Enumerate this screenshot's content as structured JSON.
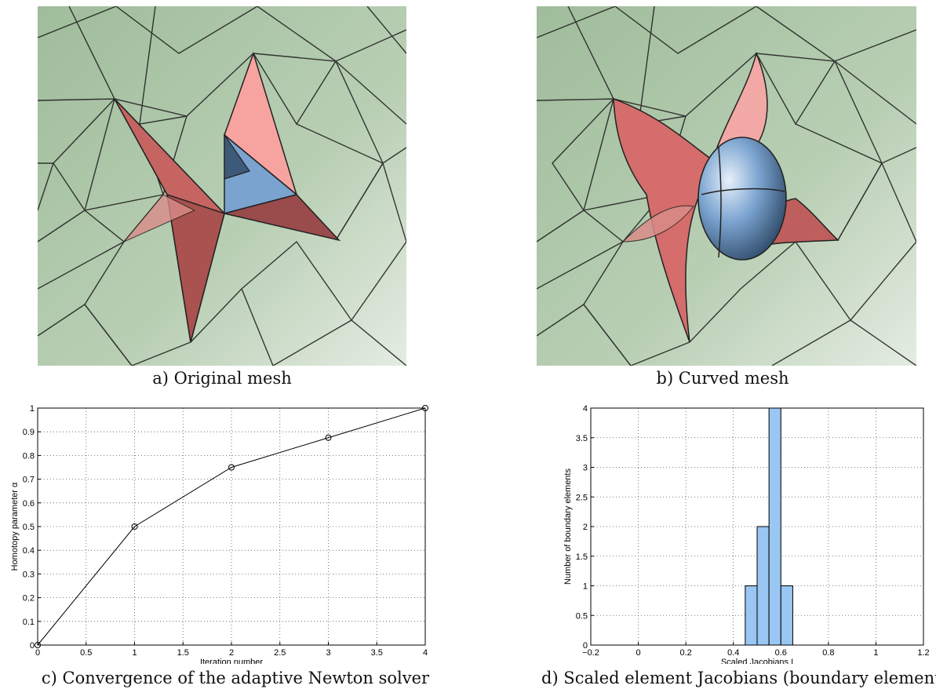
{
  "captions": {
    "a": "a) Original mesh",
    "b": "b) Curved mesh",
    "c": "c) Convergence of the adaptive Newton solver",
    "d": "d) Scaled element Jacobians (boundary elements)"
  },
  "colors": {
    "mesh_bg": "#a9c2a4",
    "mesh_light": "#dfe9dc",
    "pink": "#e07a78",
    "pink_light": "#f7a3a0",
    "pink_dark": "#9a4b4c",
    "blue": "#7aa3cf",
    "blue_dark": "#3d5a78",
    "bar_fill": "#99c6f2"
  },
  "chart_data": [
    {
      "type": "line",
      "x": [
        0,
        1,
        2,
        3,
        4
      ],
      "y": [
        0,
        0.5,
        0.75,
        0.875,
        1.0
      ],
      "xlabel": "Iteration number",
      "ylabel": "Homotopy parameter α",
      "xlim": [
        0,
        4
      ],
      "ylim": [
        0,
        1
      ],
      "xticks": [
        "0",
        "0.5",
        "1",
        "1.5",
        "2",
        "2.5",
        "3",
        "3.5",
        "4"
      ],
      "yticks": [
        "0",
        "0.1",
        "0.2",
        "0.3",
        "0.4",
        "0.5",
        "0.6",
        "0.7",
        "0.8",
        "0.9",
        "1"
      ],
      "grid": true,
      "marker": "circle"
    },
    {
      "type": "bar",
      "bins": [
        {
          "from": 0.45,
          "to": 0.5,
          "count": 1
        },
        {
          "from": 0.5,
          "to": 0.55,
          "count": 2
        },
        {
          "from": 0.55,
          "to": 0.6,
          "count": 4
        },
        {
          "from": 0.6,
          "to": 0.65,
          "count": 1
        }
      ],
      "xlabel": "Scaled Jacobians I",
      "ylabel": "Number of boundary elements",
      "xlim": [
        -0.2,
        1.2
      ],
      "ylim": [
        0,
        4
      ],
      "xticks": [
        "−0.2",
        "0",
        "0.2",
        "0.4",
        "0.6",
        "0.8",
        "1",
        "1.2"
      ],
      "yticks": [
        "0",
        "0.5",
        "1",
        "1.5",
        "2",
        "2.5",
        "3",
        "3.5",
        "4"
      ],
      "grid": true
    }
  ]
}
